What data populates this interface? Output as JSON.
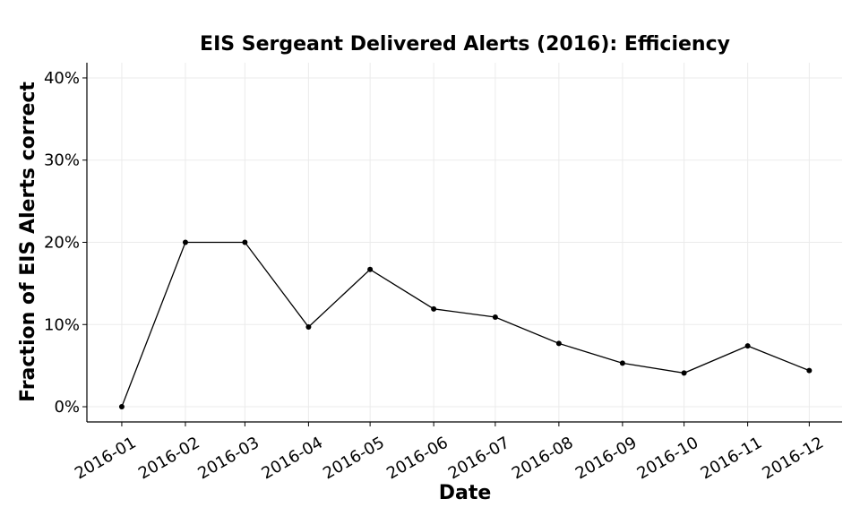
{
  "chart_data": {
    "type": "line",
    "title": "EIS Sergeant Delivered Alerts (2016): Efficiency",
    "xlabel": "Date",
    "ylabel": "Fraction of EIS Alerts correct",
    "x": [
      "2016-01-01",
      "2016-02-01",
      "2016-03-01",
      "2016-04-01",
      "2016-05-01",
      "2016-06-01",
      "2016-07-01",
      "2016-08-01",
      "2016-09-01",
      "2016-10-01",
      "2016-11-01",
      "2016-12-01"
    ],
    "x_tick_labels": [
      "2016-01",
      "2016-02",
      "2016-03",
      "2016-04",
      "2016-05",
      "2016-06",
      "2016-07",
      "2016-08",
      "2016-09",
      "2016-10",
      "2016-11",
      "2016-12"
    ],
    "y": [
      0.0,
      0.2,
      0.2,
      0.097,
      0.167,
      0.119,
      0.109,
      0.077,
      0.053,
      0.041,
      0.074,
      0.044
    ],
    "y_ticks": [
      0,
      0.1,
      0.2,
      0.3,
      0.4
    ],
    "y_tick_labels": [
      "0%",
      "10%",
      "20%",
      "30%",
      "40%"
    ],
    "ylim": [
      -0.0185,
      0.4185
    ],
    "xlim": [
      "2015-12-15",
      "2016-12-17"
    ],
    "grid": true,
    "line_color": "#000000",
    "grid_color": "#ebebeb"
  }
}
